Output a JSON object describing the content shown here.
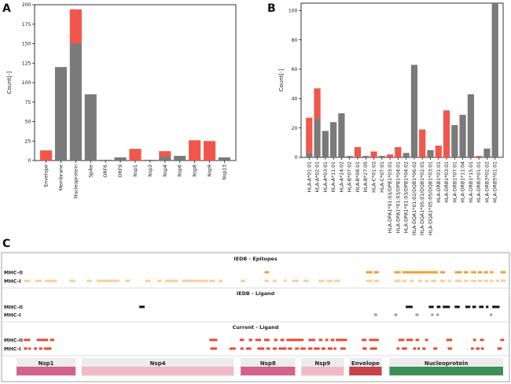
{
  "panel_labels": {
    "a": "A",
    "b": "B",
    "c": "C"
  },
  "chart_data": [
    {
      "type": "bar",
      "panel": "A",
      "ylabel": "Count[-]",
      "ylim": [
        0,
        200
      ],
      "yticks": [
        0,
        25,
        50,
        75,
        100,
        125,
        150,
        175,
        200
      ],
      "categories": [
        "Envelope",
        "Membrane",
        "Nucleoprotein",
        "Spike",
        "ORF6",
        "ORF9",
        "Nsp1",
        "Nsp3",
        "Nsp4",
        "Nsp6",
        "Nsp8",
        "Nsp9",
        "Nsp13"
      ],
      "stacked": true,
      "series": [
        {
          "color": "#7a7a7a",
          "values": [
            0,
            120,
            150,
            85,
            1,
            4,
            0,
            1,
            5,
            6,
            0,
            0,
            4
          ]
        },
        {
          "color": "#f0574a",
          "values": [
            13,
            0,
            44,
            0,
            0,
            0,
            15,
            0,
            7,
            0,
            26,
            25,
            0
          ]
        }
      ]
    },
    {
      "type": "bar",
      "panel": "B",
      "ylabel": "Count[-]",
      "ylim": [
        0,
        105
      ],
      "yticks": [
        0,
        20,
        40,
        60,
        80,
        100
      ],
      "categories": [
        "HLA-A*01:01",
        "HLA-A*02:01",
        "HLA-A*03:01",
        "HLA-A*11:01",
        "HLA-A*24:02",
        "HLA-B*07:02",
        "HLA-B*08:01",
        "HLA-B*27:05",
        "HLA-C*01:02",
        "HLA-C*07:01",
        "HLA-DPA1*01:03/DPB1*03:01",
        "HLA-DPA1*01:03/DPB1*04:01",
        "HLA-DPA1*01:03/DPB1*04:02",
        "HLA-DQA1*01:02/DQB1*06:02",
        "HLA-DQA1*05:01/DQB1*02:01",
        "HLA-DQA1*05:05/DQB1*03:01",
        "HLA-DRB1*01:01",
        "HLA-DRB1*03:01",
        "HLA-DRB1*07:01",
        "HLA-DRB1*11:04",
        "HLA-DRB1*15:01",
        "HLA-DRB3*01:01",
        "HLA-DRB3*02:02",
        "HLA-DRB5*01:01"
      ],
      "stacked": true,
      "series": [
        {
          "color": "#7a7a7a",
          "values": [
            3,
            26,
            18,
            24,
            30,
            1,
            0,
            1,
            0,
            1,
            0,
            0,
            3,
            63,
            0,
            5,
            0,
            0,
            22,
            29,
            43,
            0,
            6,
            105
          ]
        },
        {
          "color": "#f0574a",
          "values": [
            24,
            21,
            0,
            0,
            0,
            0,
            7,
            0,
            4,
            0,
            2,
            7,
            0,
            0,
            19,
            0,
            8,
            32,
            0,
            0,
            0,
            1,
            0,
            0
          ]
        }
      ]
    },
    {
      "type": "epitope_map",
      "panel": "C",
      "sections": [
        {
          "title": "IEDB - Epitopes",
          "rows": [
            {
              "label": "MHC-II",
              "color": "#f0a030",
              "segments": [
                [
                  0.499,
                  0.5084
                ],
                [
                  0.7082,
                  0.7215
                ],
                [
                  0.7247,
                  0.7347
                ],
                [
                  0.7662,
                  0.7795
                ],
                [
                  0.7828,
                  0.856
                ],
                [
                  0.8607,
                  0.8707
                ],
                [
                  0.891,
                  0.9055
                ],
                [
                  0.9093,
                  0.9181
                ],
                [
                  0.9241,
                  0.9349
                ],
                [
                  0.9385,
                  0.9471
                ],
                [
                  0.9506,
                  0.9594
                ],
                [
                  0.9631,
                  0.9701
                ],
                [
                  0.985,
                  0.9953
                ]
              ]
            },
            {
              "label": "MHC-I",
              "color": "#f7cf98",
              "segments": [
                [
                  0.0038,
                  0.0168
                ],
                [
                  0.0276,
                  0.0404
                ],
                [
                  0.0467,
                  0.0719
                ],
                [
                  0.0978,
                  0.1103
                ],
                [
                  0.133,
                  0.1434
                ],
                [
                  0.154,
                  0.2002
                ],
                [
                  0.2124,
                  0.2228
                ],
                [
                  0.2535,
                  0.2648
                ],
                [
                  0.2787,
                  0.2875
                ],
                [
                  0.2942,
                  0.3213
                ],
                [
                  0.3301,
                  0.3834
                ],
                [
                  0.3856,
                  0.3978
                ],
                [
                  0.4043,
                  0.4129
                ],
                [
                  0.4498,
                  0.4596
                ],
                [
                  0.499,
                  0.5084
                ],
                [
                  0.5158,
                  0.5237
                ],
                [
                  0.5388,
                  0.5442
                ],
                [
                  0.556,
                  0.569
                ],
                [
                  0.579,
                  0.5902
                ],
                [
                  0.6105,
                  0.6222
                ],
                [
                  0.6277,
                  0.6396
                ],
                [
                  0.6429,
                  0.6544
                ],
                [
                  0.7082,
                  0.7215
                ],
                [
                  0.7247,
                  0.7347
                ],
                [
                  0.7662,
                  0.7795
                ],
                [
                  0.7828,
                  0.791
                ],
                [
                  0.7983,
                  0.8058
                ],
                [
                  0.8156,
                  0.8235
                ],
                [
                  0.8292,
                  0.8372
                ],
                [
                  0.8419,
                  0.8525
                ],
                [
                  0.8607,
                  0.8707
                ],
                [
                  0.8763,
                  0.8831
                ],
                [
                  0.891,
                  0.9055
                ],
                [
                  0.9093,
                  0.9181
                ],
                [
                  0.9241,
                  0.9349
                ],
                [
                  0.9385,
                  0.9471
                ],
                [
                  0.9506,
                  0.9594
                ],
                [
                  0.9631,
                  0.9701
                ],
                [
                  0.9752,
                  0.9822
                ],
                [
                  0.985,
                  0.9953
                ]
              ]
            }
          ]
        },
        {
          "title": "IEDB - Ligand",
          "rows": [
            {
              "label": "MHC-II",
              "color": "#111111",
              "segments": [
                [
                  0.2413,
                  0.2524
                ],
                [
                  0.7898,
                  0.804
                ],
                [
                  0.8372,
                  0.8473
                ],
                [
                  0.8536,
                  0.8613
                ],
                [
                  0.866,
                  0.8807
                ],
                [
                  0.8904,
                  0.901
                ],
                [
                  0.9125,
                  0.9228
                ],
                [
                  0.9269,
                  0.9345
                ],
                [
                  0.9407,
                  0.9501
                ],
                [
                  0.9548,
                  0.96
                ],
                [
                  0.9678,
                  0.983
                ]
              ]
            },
            {
              "label": "MHC-I",
              "color": "#999999",
              "segments": [
                [
                  0.7247,
                  0.7309
                ],
                [
                  0.7662,
                  0.7725
                ],
                [
                  0.8098,
                  0.8162
                ],
                [
                  0.8419,
                  0.847
                ],
                [
                  0.8531,
                  0.8583
                ],
                [
                  0.9631,
                  0.9681
                ]
              ]
            }
          ]
        },
        {
          "title": "Current - Ligand",
          "rows": [
            {
              "label": "MHC-II",
              "color": "#e84830",
              "segments": [
                [
                  0.0038,
                  0.0168
                ],
                [
                  0.0304,
                  0.0536
                ],
                [
                  0.0574,
                  0.0666
                ],
                [
                  0.3855,
                  0.4021
                ],
                [
                  0.448,
                  0.4572
                ],
                [
                  0.4668,
                  0.4744
                ],
                [
                  0.4801,
                  0.492
                ],
                [
                  0.4984,
                  0.5095
                ],
                [
                  0.5188,
                  0.5256
                ],
                [
                  0.5317,
                  0.5397
                ],
                [
                  0.5443,
                  0.5797
                ],
                [
                  0.5899,
                  0.6034
                ],
                [
                  0.6109,
                  0.6185
                ],
                [
                  0.6242,
                  0.6304
                ],
                [
                  0.6354,
                  0.6431
                ],
                [
                  0.6457,
                  0.6689
                ],
                [
                  0.6991,
                  0.7092
                ],
                [
                  0.7143,
                  0.7344
                ],
                [
                  0.7749,
                  0.7869
                ],
                [
                  0.7913,
                  0.8045
                ],
                [
                  0.8099,
                  0.8172
                ],
                [
                  0.8295,
                  0.8357
                ],
                [
                  0.8734,
                  0.8853
                ],
                [
                  0.9283,
                  0.9346
                ],
                [
                  0.9426,
                  0.9506
                ],
                [
                  0.9844,
                  0.9923
                ]
              ]
            },
            {
              "label": "MHC-I",
              "color": "#e84830",
              "segments": [
                [
                  0.0038,
                  0.0105
                ],
                [
                  0.0131,
                  0.0184
                ],
                [
                  0.0245,
                  0.0307
                ],
                [
                  0.0352,
                  0.042
                ],
                [
                  0.0451,
                  0.0607
                ],
                [
                  0.3876,
                  0.4011
                ],
                [
                  0.4273,
                  0.4395
                ],
                [
                  0.4494,
                  0.4561
                ],
                [
                  0.4609,
                  0.4719
                ],
                [
                  0.4844,
                  0.4988
                ],
                [
                  0.503,
                  0.5106
                ],
                [
                  0.516,
                  0.5244
                ],
                [
                  0.5284,
                  0.5446
                ],
                [
                  0.5474,
                  0.5556
                ],
                [
                  0.562,
                  0.5694
                ],
                [
                  0.5732,
                  0.5838
                ],
                [
                  0.5886,
                  0.5978
                ],
                [
                  0.6006,
                  0.6127
                ],
                [
                  0.6163,
                  0.6245
                ],
                [
                  0.6292,
                  0.6391
                ],
                [
                  0.6413,
                  0.647
                ],
                [
                  0.6554,
                  0.6663
                ],
                [
                  0.7009,
                  0.7097
                ],
                [
                  0.7161,
                  0.7308
                ],
                [
                  0.7712,
                  0.777
                ],
                [
                  0.7818,
                  0.7924
                ],
                [
                  0.8049,
                  0.8111
                ],
                [
                  0.8138,
                  0.819
                ],
                [
                  0.8239,
                  0.8308
                ],
                [
                  0.8466,
                  0.8546
                ],
                [
                  0.8762,
                  0.885
                ],
                [
                  0.9239,
                  0.9299
                ],
                [
                  0.9345,
                  0.9419
                ],
                [
                  0.9448,
                  0.9506
                ],
                [
                  0.9783,
                  0.9876
                ]
              ]
            }
          ]
        }
      ],
      "proteins": [
        {
          "name": "Nsp1",
          "color": "#d4628e",
          "range": [
            0.0,
            0.1214
          ]
        },
        {
          "name": "Nsp4",
          "color": "#f2b8c8",
          "range": [
            0.1341,
            0.4463
          ]
        },
        {
          "name": "Nsp8",
          "color": "#d4628e",
          "range": [
            0.4606,
            0.5726
          ]
        },
        {
          "name": "Nsp9",
          "color": "#f2b8c8",
          "range": [
            0.5853,
            0.6727
          ]
        },
        {
          "name": "Envelope",
          "color": "#c9424a",
          "range": [
            0.6838,
            0.7505
          ]
        },
        {
          "name": "Nucleoprotein",
          "color": "#3d8f57",
          "range": [
            0.7664,
            1.0
          ]
        }
      ]
    }
  ]
}
